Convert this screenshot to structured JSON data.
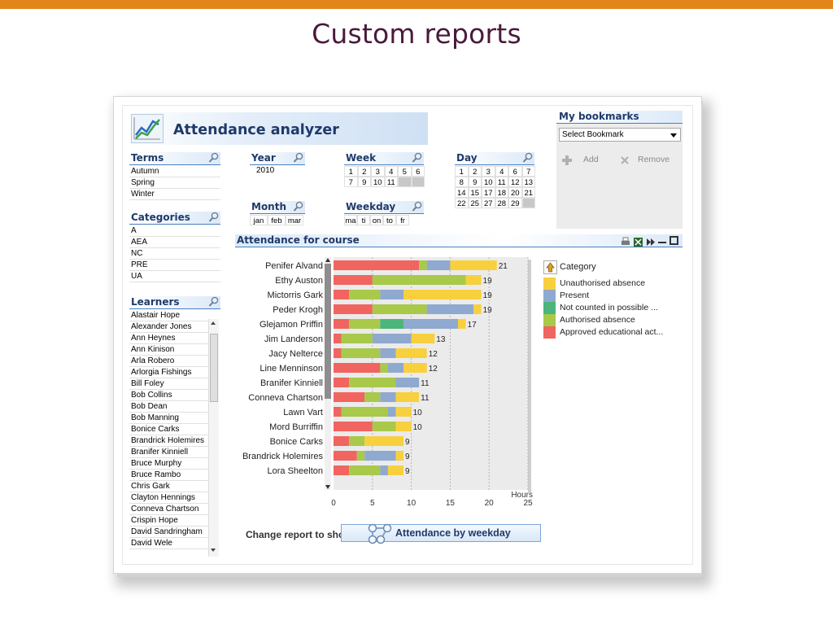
{
  "slide": {
    "title": "Custom reports"
  },
  "app": {
    "title": "Attendance analyzer"
  },
  "terms": {
    "title": "Terms",
    "items": [
      "Autumn",
      "Spring",
      "Winter"
    ]
  },
  "categories": {
    "title": "Categories",
    "items": [
      "A",
      "AEA",
      "NC",
      "PRE",
      "UA"
    ]
  },
  "learners": {
    "title": "Learners",
    "items": [
      "Alastair Hope",
      "Alexander Jones",
      "Ann Heynes",
      "Ann Kinison",
      "Arla Robero",
      "Arlorgia Fishings",
      "Bill Foley",
      "Bob Collins",
      "Bob Dean",
      "Bob Manning",
      "Bonice Carks",
      "Brandrick Holemires",
      "Branifer Kinniell",
      "Bruce Murphy",
      "Bruce Rambo",
      "Chris Gark",
      "Clayton Hennings",
      "Conneva Chartson",
      "Crispin Hope",
      "David Sandringham",
      "David Wele"
    ]
  },
  "year": {
    "title": "Year",
    "items": [
      "2010"
    ]
  },
  "month": {
    "title": "Month",
    "items": [
      "jan",
      "feb",
      "mar"
    ]
  },
  "week": {
    "title": "Week",
    "row1": [
      "1",
      "2",
      "3",
      "4",
      "5",
      "6"
    ],
    "row2": [
      "7",
      "9",
      "10",
      "11",
      "",
      ""
    ]
  },
  "weekday": {
    "title": "Weekday",
    "items": [
      "ma",
      "ti",
      "on",
      "to",
      "fr"
    ]
  },
  "day": {
    "title": "Day",
    "rows": [
      [
        "1",
        "2",
        "3",
        "4",
        "6",
        "7"
      ],
      [
        "8",
        "9",
        "10",
        "11",
        "12",
        "13"
      ],
      [
        "14",
        "15",
        "17",
        "18",
        "20",
        "21"
      ],
      [
        "22",
        "25",
        "27",
        "28",
        "29",
        ""
      ]
    ]
  },
  "bookmarks": {
    "title": "My bookmarks",
    "select": "Select Bookmark",
    "add": "Add",
    "remove": "Remove"
  },
  "chart": {
    "header": "Attendance for course",
    "legend_title": "Category"
  },
  "change": {
    "label": "Change report to show:",
    "button": "Attendance by weekday"
  },
  "chart_data": {
    "type": "bar",
    "orientation": "horizontal",
    "stacked": true,
    "title": "Attendance for course",
    "xlabel": "Hours",
    "xlim": [
      0,
      25
    ],
    "xticks": [
      0,
      5,
      10,
      15,
      20,
      25
    ],
    "categories": [
      "Penifer Alvand",
      "Ethy Auston",
      "Mictorris Gark",
      "Peder Krogh",
      "Glejamon Priffin",
      "Jim Landerson",
      "Jacy Nelterce",
      "Line Menninson",
      "Branifer Kinniell",
      "Conneva Chartson",
      "Lawn Vart",
      "Mord Burriffin",
      "Bonice Carks",
      "Brandrick Holemires",
      "Lora Sheelton"
    ],
    "totals": [
      21,
      19,
      19,
      19,
      17,
      13,
      12,
      12,
      11,
      11,
      10,
      10,
      9,
      9,
      9
    ],
    "legend": [
      "Unauthorised absence",
      "Present",
      "Not counted in possible ...",
      "Authorised absence",
      "Approved educational act..."
    ],
    "series": [
      {
        "name": "Approved educational act...",
        "color": "#f06560",
        "values": [
          11,
          5,
          2,
          5,
          2,
          1,
          1,
          6,
          2,
          4,
          1,
          5,
          2,
          3,
          2
        ]
      },
      {
        "name": "Authorised absence",
        "color": "#a8c94a",
        "values": [
          1,
          12,
          4,
          7,
          4,
          4,
          5,
          1,
          6,
          2,
          6,
          3,
          2,
          1,
          4
        ]
      },
      {
        "name": "Not counted in possible ...",
        "color": "#4cb57c",
        "values": [
          0,
          0,
          0,
          0,
          3,
          0,
          0,
          0,
          0,
          0,
          0,
          0,
          0,
          0,
          0
        ]
      },
      {
        "name": "Present",
        "color": "#8fa9cf",
        "values": [
          3,
          0,
          3,
          6,
          7,
          5,
          2,
          2,
          3,
          2,
          1,
          0,
          0,
          4,
          1
        ]
      },
      {
        "name": "Unauthorised absence",
        "color": "#f8d03e",
        "values": [
          6,
          2,
          10,
          1,
          1,
          3,
          4,
          3,
          0,
          3,
          2,
          2,
          5,
          1,
          2
        ]
      }
    ],
    "grid": true
  }
}
